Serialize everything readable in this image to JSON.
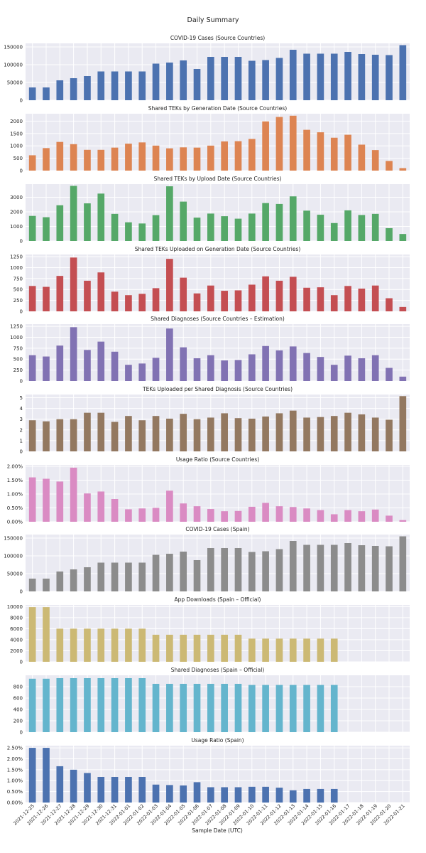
{
  "figure": {
    "title": "Daily Summary",
    "xlabel": "Sample Date (UTC)"
  },
  "chart_data": [
    {
      "type": "bar",
      "title": "COVID-19 Cases (Source Countries)",
      "color": "#4c72b0",
      "ylim": [
        0,
        160000
      ],
      "yticks": [
        0,
        50000,
        100000,
        150000
      ],
      "ytick_labels": [
        "0",
        "50000",
        "100000",
        "150000"
      ],
      "values": [
        36000,
        36000,
        56000,
        62000,
        68000,
        81000,
        81000,
        81000,
        81000,
        103000,
        106000,
        112000,
        88000,
        122000,
        122000,
        122000,
        111000,
        113000,
        119000,
        142000,
        131000,
        131000,
        131000,
        136000,
        130000,
        128000,
        127000,
        155000
      ]
    },
    {
      "type": "bar",
      "title": "Shared TEKs by Generation Date (Source Countries)",
      "color": "#dd8452",
      "ylim": [
        0,
        2300
      ],
      "yticks": [
        0,
        500,
        1000,
        1500,
        2000
      ],
      "ytick_labels": [
        "0",
        "500",
        "1000",
        "1500",
        "2000"
      ],
      "values": [
        620,
        910,
        1160,
        1070,
        840,
        840,
        930,
        1090,
        1140,
        1010,
        900,
        940,
        930,
        1010,
        1180,
        1190,
        1280,
        1990,
        2170,
        2220,
        1650,
        1550,
        1330,
        1450,
        1050,
        830,
        390,
        100
      ]
    },
    {
      "type": "bar",
      "title": "Shared TEKs by Upload Date (Source Countries)",
      "color": "#55a868",
      "ylim": [
        0,
        3900
      ],
      "yticks": [
        0,
        1000,
        2000,
        3000
      ],
      "ytick_labels": [
        "0",
        "1000",
        "2000",
        "3000"
      ],
      "values": [
        1720,
        1630,
        2450,
        3780,
        2580,
        3250,
        1860,
        1280,
        1200,
        1770,
        3750,
        2700,
        1600,
        1880,
        1700,
        1530,
        1880,
        2600,
        2540,
        3060,
        2080,
        1800,
        1230,
        2100,
        1780,
        1860,
        880,
        480
      ]
    },
    {
      "type": "bar",
      "title": "Shared TEKs Uploaded on Generation Date (Source Countries)",
      "color": "#c44e52",
      "ylim": [
        0,
        1300
      ],
      "yticks": [
        0,
        250,
        500,
        750,
        1000,
        1250
      ],
      "ytick_labels": [
        "0",
        "250",
        "500",
        "750",
        "1000",
        "1250"
      ],
      "values": [
        580,
        560,
        810,
        1230,
        700,
        890,
        450,
        370,
        400,
        530,
        1200,
        770,
        410,
        590,
        470,
        480,
        610,
        800,
        700,
        790,
        540,
        550,
        370,
        580,
        520,
        590,
        300,
        100
      ]
    },
    {
      "type": "bar",
      "title": "Shared Diagnoses (Source Countries – Estimation)",
      "color": "#8172b3",
      "ylim": [
        0,
        1300
      ],
      "yticks": [
        0,
        250,
        500,
        750,
        1000,
        1250
      ],
      "ytick_labels": [
        "0",
        "250",
        "500",
        "750",
        "1000",
        "1250"
      ],
      "values": [
        590,
        560,
        810,
        1230,
        710,
        900,
        670,
        370,
        400,
        530,
        1200,
        770,
        520,
        590,
        470,
        480,
        610,
        800,
        700,
        790,
        640,
        550,
        370,
        580,
        520,
        590,
        300,
        100
      ]
    },
    {
      "type": "bar",
      "title": "TEKs Uploaded per Shared Diagnosis (Source Countries)",
      "color": "#937860",
      "ylim": [
        0,
        5.3
      ],
      "yticks": [
        0,
        1,
        2,
        3,
        4,
        5
      ],
      "ytick_labels": [
        "0",
        "1",
        "2",
        "3",
        "4",
        "5"
      ],
      "values": [
        2.9,
        2.8,
        3.0,
        3.0,
        3.6,
        3.6,
        2.75,
        3.3,
        2.9,
        3.3,
        3.05,
        3.5,
        3.0,
        3.15,
        3.55,
        3.1,
        3.05,
        3.25,
        3.55,
        3.8,
        3.15,
        3.2,
        3.3,
        3.6,
        3.45,
        3.15,
        2.95,
        5.15
      ]
    },
    {
      "type": "bar",
      "title": "Usage Ratio (Source Countries)",
      "color": "#da8bc3",
      "ylim": [
        0,
        2.05
      ],
      "yticks": [
        0,
        0.5,
        1,
        1.5,
        2
      ],
      "ytick_labels": [
        "0.00%",
        "0.50%",
        "1.00%",
        "1.50%",
        "2.00%"
      ],
      "values": [
        1.6,
        1.55,
        1.45,
        1.95,
        1.02,
        1.09,
        0.82,
        0.45,
        0.48,
        0.5,
        1.12,
        0.66,
        0.56,
        0.46,
        0.38,
        0.39,
        0.54,
        0.68,
        0.56,
        0.53,
        0.48,
        0.42,
        0.27,
        0.42,
        0.38,
        0.44,
        0.22,
        0.06
      ]
    },
    {
      "type": "bar",
      "title": "COVID-19 Cases (Spain)",
      "color": "#8c8c8c",
      "ylim": [
        0,
        160000
      ],
      "yticks": [
        0,
        50000,
        100000,
        150000
      ],
      "ytick_labels": [
        "0",
        "50000",
        "100000",
        "150000"
      ],
      "values": [
        36000,
        36000,
        56000,
        62000,
        68000,
        81000,
        81000,
        81000,
        81000,
        103000,
        106000,
        112000,
        88000,
        122000,
        122000,
        122000,
        111000,
        113000,
        119000,
        142000,
        131000,
        131000,
        131000,
        136000,
        130000,
        128000,
        127000,
        155000
      ]
    },
    {
      "type": "bar",
      "title": "App Downloads (Spain – Official)",
      "color": "#ccb974",
      "ylim": [
        0,
        10300
      ],
      "yticks": [
        0,
        2000,
        4000,
        6000,
        8000,
        10000
      ],
      "ytick_labels": [
        "0",
        "2000",
        "4000",
        "6000",
        "8000",
        "10000"
      ],
      "values": [
        9900,
        9900,
        6000,
        6000,
        6000,
        6000,
        6000,
        6000,
        6000,
        4900,
        4900,
        4900,
        4900,
        4900,
        4900,
        4900,
        4200,
        4200,
        4200,
        4200,
        4200,
        4200,
        4200,
        null,
        null,
        null,
        null,
        null
      ]
    },
    {
      "type": "bar",
      "title": "Shared Diagnoses (Spain – Official)",
      "color": "#64b5cd",
      "ylim": [
        0,
        1000
      ],
      "yticks": [
        0,
        200,
        400,
        600,
        800
      ],
      "ytick_labels": [
        "0",
        "200",
        "400",
        "600",
        "800"
      ],
      "values": [
        940,
        940,
        950,
        950,
        950,
        950,
        950,
        950,
        950,
        850,
        850,
        850,
        850,
        850,
        850,
        850,
        830,
        830,
        830,
        830,
        830,
        830,
        830,
        null,
        null,
        null,
        null,
        null
      ]
    },
    {
      "type": "bar",
      "title": "Usage Ratio (Spain)",
      "color": "#4c72b0",
      "ylim": [
        0,
        2.6
      ],
      "yticks": [
        0,
        0.5,
        1,
        1.5,
        2,
        2.5
      ],
      "ytick_labels": [
        "0.00%",
        "0.50%",
        "1.00%",
        "1.50%",
        "2.00%",
        "2.50%"
      ],
      "values": [
        2.5,
        2.5,
        1.66,
        1.5,
        1.35,
        1.17,
        1.17,
        1.17,
        1.17,
        0.82,
        0.8,
        0.78,
        0.93,
        0.7,
        0.7,
        0.7,
        0.72,
        0.72,
        0.68,
        0.56,
        0.62,
        0.62,
        0.62,
        null,
        null,
        null,
        null,
        null
      ]
    }
  ],
  "x_dates": [
    "2021-12-25",
    "2021-12-26",
    "2021-12-27",
    "2021-12-28",
    "2021-12-29",
    "2021-12-30",
    "2021-12-31",
    "2022-01-01",
    "2022-01-02",
    "2022-01-03",
    "2022-01-04",
    "2022-01-05",
    "2022-01-06",
    "2022-01-07",
    "2022-01-08",
    "2022-01-09",
    "2022-01-10",
    "2022-01-11",
    "2022-01-12",
    "2022-01-13",
    "2022-01-14",
    "2022-01-15",
    "2022-01-16",
    "2022-01-17",
    "2022-01-18",
    "2022-01-19",
    "2022-01-20",
    "2022-01-21"
  ]
}
